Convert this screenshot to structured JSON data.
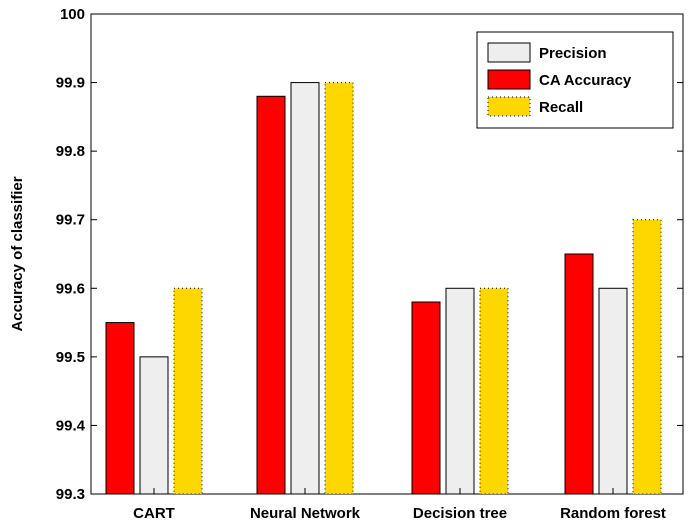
{
  "chart_data": {
    "type": "bar",
    "title": "",
    "xlabel": "",
    "ylabel": "Accuracy of classifier",
    "ylim": [
      99.3,
      100
    ],
    "yticks": [
      "99.3",
      "99.4",
      "99.5",
      "99.6",
      "99.7",
      "99.8",
      "99.9",
      "100"
    ],
    "categories": [
      "CART",
      "Neural Network",
      "Decision tree",
      "Random forest"
    ],
    "series": [
      {
        "name": "CA Accuracy",
        "color": "#ff0000",
        "dotted": false,
        "values": [
          99.55,
          99.88,
          99.58,
          99.65
        ]
      },
      {
        "name": "Precision",
        "color": "#eeeeee",
        "dotted": false,
        "values": [
          99.5,
          99.9,
          99.6,
          99.6
        ]
      },
      {
        "name": "Recall",
        "color": "#ffd700",
        "dotted": true,
        "values": [
          99.6,
          99.9,
          99.6,
          99.7
        ]
      }
    ],
    "legend": {
      "placement": "top-right",
      "order": [
        "Precision",
        "CA Accuracy",
        "Recall"
      ]
    },
    "grid": false
  }
}
